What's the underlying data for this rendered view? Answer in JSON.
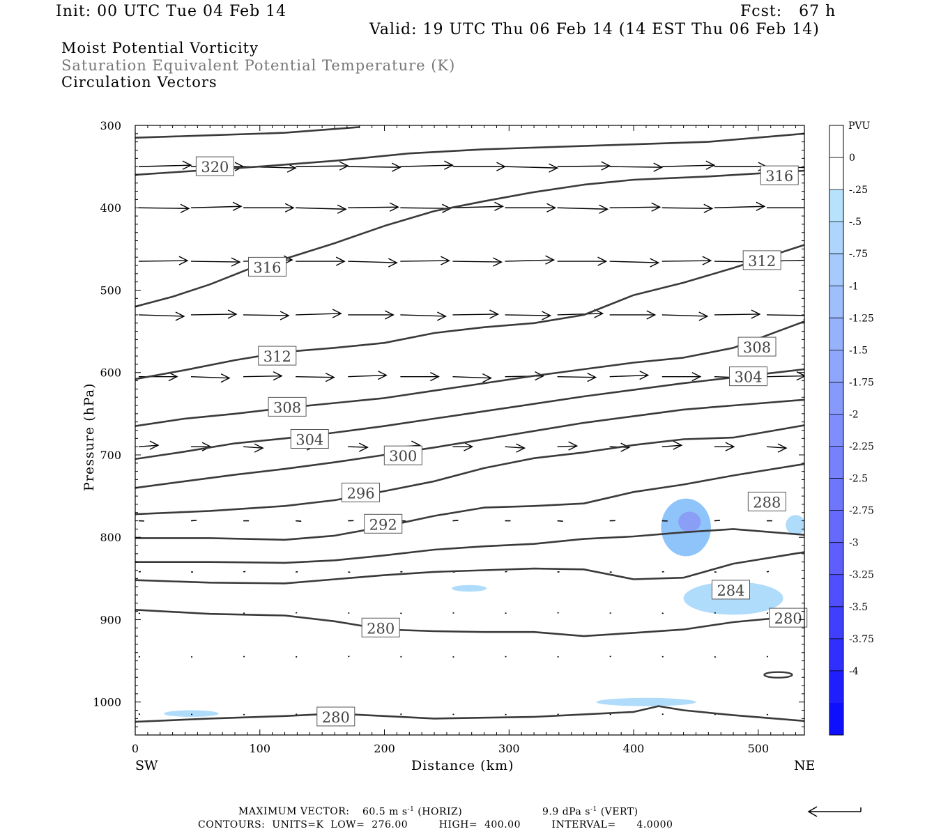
{
  "header": {
    "init": "Init: 00 UTC Tue 04 Feb 14",
    "fcst": "Fcst:   67 h",
    "valid": "Valid: 19 UTC Thu 06 Feb 14 (14 EST Thu 06 Feb 14)",
    "field1": "Moist Potential Vorticity",
    "field2": "Saturation Equivalent Potential Temperature (K)",
    "field3": "Circulation Vectors"
  },
  "footer": {
    "max_vector_label": "MAXIMUM VECTOR:",
    "max_horiz": "60.5 m s",
    "horiz_tag": "(HORIZ)",
    "max_vert": "9.9 dPa s",
    "vert_tag": "(VERT)",
    "exp": "-1",
    "contours": "CONTOURS:  UNITS=K  LOW=  276.00         HIGH=  400.00         INTERVAL=      4.0000"
  },
  "chart_data": {
    "type": "cross-section contour",
    "xlabel": "Distance (km)",
    "ylabel": "Pressure (hPa)",
    "x_left_label": "SW",
    "x_right_label": "NE",
    "xlim": [
      0,
      537
    ],
    "ylim": [
      1040,
      300
    ],
    "xticks": [
      0,
      100,
      200,
      300,
      400,
      500
    ],
    "yticks": [
      300,
      400,
      500,
      600,
      700,
      800,
      900,
      1000
    ],
    "contour_color": "#3a3a3a",
    "isentropes": [
      {
        "label": "",
        "points": [
          [
            0,
            315
          ],
          [
            60,
            312
          ],
          [
            120,
            309
          ],
          [
            180,
            302
          ]
        ]
      },
      {
        "label": "320",
        "points": [
          [
            0,
            360
          ],
          [
            50,
            355
          ],
          [
            100,
            350
          ],
          [
            160,
            343
          ],
          [
            220,
            334
          ],
          [
            280,
            329
          ],
          [
            340,
            326
          ],
          [
            400,
            323
          ],
          [
            460,
            320
          ],
          [
            537,
            310
          ]
        ],
        "label_at": [
          50,
          350
        ]
      },
      {
        "label": "316",
        "points": [
          [
            0,
            520
          ],
          [
            30,
            508
          ],
          [
            60,
            493
          ],
          [
            90,
            475
          ],
          [
            120,
            462
          ],
          [
            160,
            443
          ],
          [
            200,
            422
          ],
          [
            240,
            404
          ],
          [
            280,
            392
          ],
          [
            320,
            381
          ],
          [
            360,
            372
          ],
          [
            400,
            366
          ],
          [
            460,
            362
          ],
          [
            537,
            355
          ]
        ],
        "label_at": [
          92,
          472
        ]
      },
      {
        "label": "316",
        "label_at": [
          503,
          361
        ]
      },
      {
        "label": "312",
        "points": [
          [
            0,
            608
          ],
          [
            40,
            597
          ],
          [
            80,
            585
          ],
          [
            120,
            575
          ],
          [
            160,
            570
          ],
          [
            200,
            564
          ],
          [
            240,
            552
          ],
          [
            280,
            545
          ],
          [
            320,
            540
          ],
          [
            360,
            530
          ],
          [
            400,
            506
          ],
          [
            440,
            491
          ],
          [
            480,
            473
          ],
          [
            537,
            445
          ]
        ],
        "label_at": [
          100,
          580
        ]
      },
      {
        "label": "312",
        "label_at": [
          489,
          464
        ]
      },
      {
        "label": "308",
        "points": [
          [
            0,
            665
          ],
          [
            40,
            656
          ],
          [
            80,
            650
          ],
          [
            120,
            643
          ],
          [
            160,
            637
          ],
          [
            200,
            631
          ],
          [
            240,
            622
          ],
          [
            280,
            613
          ],
          [
            320,
            604
          ],
          [
            360,
            596
          ],
          [
            400,
            588
          ],
          [
            440,
            582
          ],
          [
            480,
            570
          ],
          [
            537,
            538
          ]
        ],
        "label_at": [
          108,
          642
        ]
      },
      {
        "label": "308",
        "label_at": [
          485,
          569
        ]
      },
      {
        "label": "304",
        "points": [
          [
            0,
            705
          ],
          [
            40,
            696
          ],
          [
            80,
            686
          ],
          [
            120,
            680
          ],
          [
            160,
            673
          ],
          [
            200,
            665
          ],
          [
            240,
            656
          ],
          [
            280,
            647
          ],
          [
            320,
            638
          ],
          [
            360,
            629
          ],
          [
            400,
            621
          ],
          [
            440,
            613
          ],
          [
            480,
            606
          ],
          [
            537,
            596
          ]
        ],
        "label_at": [
          126,
          681
        ]
      },
      {
        "label": "304",
        "label_at": [
          478,
          605
        ]
      },
      {
        "label": "300",
        "points": [
          [
            0,
            740
          ],
          [
            40,
            732
          ],
          [
            80,
            724
          ],
          [
            120,
            717
          ],
          [
            160,
            709
          ],
          [
            200,
            700
          ],
          [
            240,
            691
          ],
          [
            280,
            681
          ],
          [
            320,
            671
          ],
          [
            360,
            661
          ],
          [
            400,
            653
          ],
          [
            440,
            645
          ],
          [
            480,
            640
          ],
          [
            537,
            633
          ]
        ],
        "label_at": [
          201,
          701
        ]
      },
      {
        "label": "296",
        "points": [
          [
            0,
            772
          ],
          [
            60,
            768
          ],
          [
            120,
            762
          ],
          [
            160,
            755
          ],
          [
            200,
            744
          ],
          [
            240,
            732
          ],
          [
            280,
            716
          ],
          [
            320,
            704
          ],
          [
            360,
            697
          ],
          [
            400,
            688
          ],
          [
            440,
            681
          ],
          [
            480,
            679
          ],
          [
            537,
            664
          ]
        ],
        "label_at": [
          167,
          746
        ]
      },
      {
        "label": "292",
        "points": [
          [
            0,
            801
          ],
          [
            60,
            801
          ],
          [
            120,
            803
          ],
          [
            160,
            798
          ],
          [
            200,
            787
          ],
          [
            240,
            774
          ],
          [
            280,
            764
          ],
          [
            320,
            762
          ],
          [
            360,
            759
          ],
          [
            400,
            745
          ],
          [
            440,
            736
          ],
          [
            480,
            725
          ],
          [
            537,
            711
          ]
        ],
        "label_at": [
          185,
          784
        ]
      },
      {
        "label": "288",
        "points": [
          [
            0,
            830
          ],
          [
            60,
            830
          ],
          [
            120,
            831
          ],
          [
            160,
            828
          ],
          [
            200,
            822
          ],
          [
            240,
            815
          ],
          [
            280,
            811
          ],
          [
            320,
            808
          ],
          [
            360,
            802
          ],
          [
            400,
            799
          ],
          [
            440,
            794
          ],
          [
            480,
            790
          ],
          [
            537,
            797
          ]
        ],
        "label_at": [
          493,
          757
        ]
      },
      {
        "label": "284",
        "points": [
          [
            0,
            852
          ],
          [
            60,
            855
          ],
          [
            120,
            856
          ],
          [
            160,
            851
          ],
          [
            200,
            846
          ],
          [
            240,
            842
          ],
          [
            280,
            840
          ],
          [
            320,
            838
          ],
          [
            360,
            839
          ],
          [
            400,
            851
          ],
          [
            440,
            849
          ],
          [
            480,
            832
          ],
          [
            537,
            818
          ]
        ],
        "label_at": [
          464,
          864
        ]
      },
      {
        "label": "280",
        "points": [
          [
            0,
            888
          ],
          [
            60,
            893
          ],
          [
            120,
            895
          ],
          [
            160,
            902
          ],
          [
            200,
            912
          ],
          [
            240,
            914
          ],
          [
            280,
            915
          ],
          [
            320,
            915
          ],
          [
            360,
            920
          ],
          [
            400,
            916
          ],
          [
            440,
            912
          ],
          [
            480,
            903
          ],
          [
            537,
            895
          ]
        ],
        "label_at": [
          183,
          910
        ]
      },
      {
        "label": "280",
        "label_at": [
          510,
          898
        ]
      },
      {
        "label": "280",
        "points": [
          [
            0,
            1024
          ],
          [
            60,
            1020
          ],
          [
            120,
            1017
          ],
          [
            160,
            1014
          ],
          [
            200,
            1017
          ],
          [
            240,
            1020
          ],
          [
            280,
            1019
          ],
          [
            320,
            1018
          ],
          [
            360,
            1015
          ],
          [
            400,
            1012
          ],
          [
            420,
            1005
          ],
          [
            440,
            1010
          ],
          [
            480,
            1016
          ],
          [
            537,
            1023
          ]
        ],
        "label_at": [
          147,
          1018
        ]
      }
    ],
    "pv_shading": [
      {
        "value": -1.0,
        "color": "#8fc4fa",
        "center": [
          442,
          788
        ],
        "rx": 20,
        "ry": 35
      },
      {
        "value": -0.5,
        "color": "#b0dcfb",
        "center": [
          530,
          785
        ],
        "rx": 8,
        "ry": 12
      },
      {
        "value": -0.5,
        "color": "#b0dcfb",
        "center": [
          480,
          874
        ],
        "rx": 40,
        "ry": 20
      },
      {
        "value": -0.5,
        "color": "#b0dcfb",
        "center": [
          268,
          862
        ],
        "rx": 14,
        "ry": 4
      },
      {
        "value": -0.5,
        "color": "#b0dcfb",
        "center": [
          45,
          1014
        ],
        "rx": 22,
        "ry": 4
      },
      {
        "value": -0.5,
        "color": "#b0dcfb",
        "center": [
          410,
          1000
        ],
        "rx": 40,
        "ry": 5
      }
    ],
    "vector_levels": [
      350,
      400,
      465,
      530,
      605,
      690,
      780,
      842,
      892,
      945,
      1015
    ],
    "vector_lengths": [
      75,
      72,
      70,
      65,
      55,
      28,
      8,
      3,
      2,
      2,
      2
    ],
    "legend": {
      "title": "PVU",
      "labels": [
        "0",
        "-.25",
        "-.5",
        "-.75",
        "-1",
        "-1.25",
        "-1.5",
        "-1.75",
        "-2",
        "-2.25",
        "-2.5",
        "-2.75",
        "-3",
        "-3.25",
        "-3.5",
        "-3.75",
        "-4"
      ],
      "colors": [
        "#ffffff",
        "#ffffff",
        "#b6e2fc",
        "#aed6fc",
        "#a6cafc",
        "#9ebefc",
        "#96b2fc",
        "#8ea6fc",
        "#869afc",
        "#7e8efc",
        "#7682fc",
        "#6e76fc",
        "#666afc",
        "#5e5efc",
        "#4f4ffd",
        "#3f3ffd",
        "#2f2ffe",
        "#1f1ffe",
        "#0f0fff"
      ]
    }
  }
}
